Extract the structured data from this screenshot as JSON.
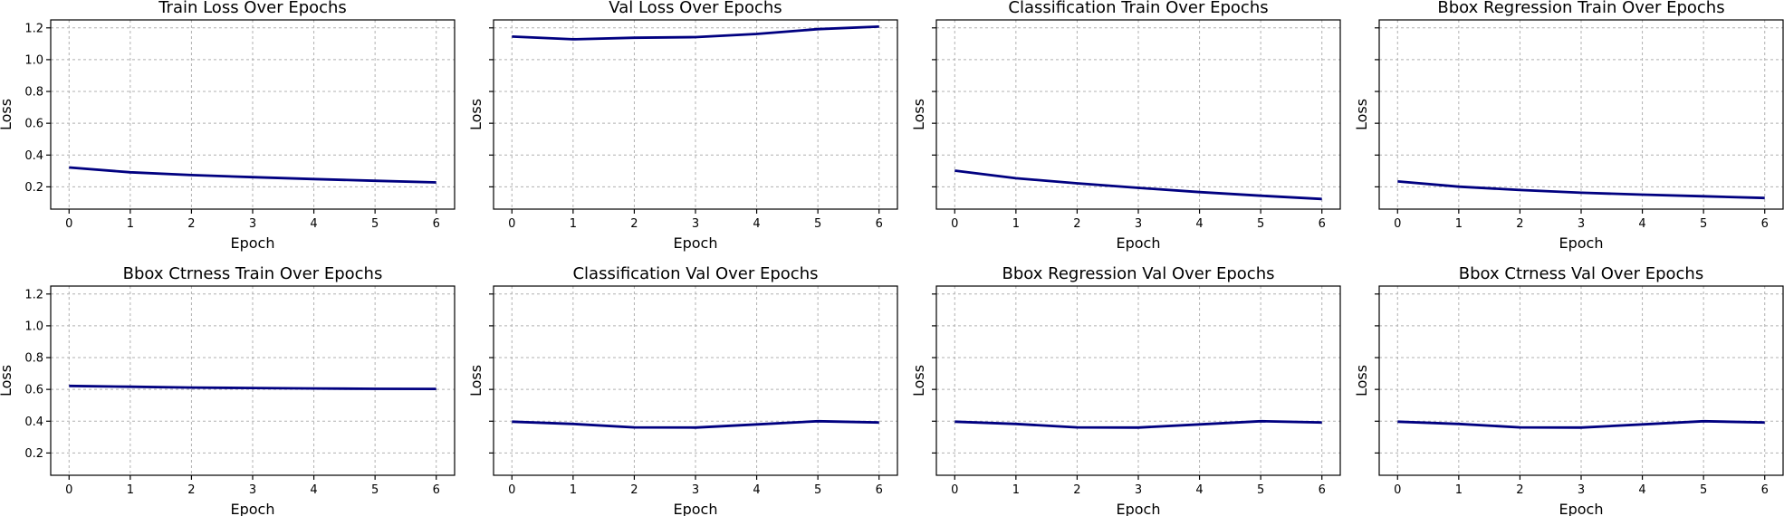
{
  "line_color": "#000080",
  "chart_data": [
    {
      "type": "line",
      "title": "Train Loss Over Epochs",
      "xlabel": "Epoch",
      "ylabel": "Loss",
      "x": [
        0,
        1,
        2,
        3,
        4,
        5,
        6
      ],
      "y": [
        0.322,
        0.292,
        0.274,
        0.261,
        0.249,
        0.238,
        0.228
      ],
      "xlim": [
        -0.3,
        6.3
      ],
      "ylim": [
        0.06,
        1.25
      ],
      "xticks": [
        "0",
        "1",
        "2",
        "3",
        "4",
        "5",
        "6"
      ],
      "yticks": [
        "0.2",
        "0.4",
        "0.6",
        "0.8",
        "1.0",
        "1.2"
      ],
      "show_yticklabels": true,
      "grid": true
    },
    {
      "type": "line",
      "title": "Val Loss Over Epochs",
      "xlabel": "Epoch",
      "ylabel": "Loss",
      "x": [
        0,
        1,
        2,
        3,
        4,
        5,
        6
      ],
      "y": [
        1.145,
        1.128,
        1.138,
        1.142,
        1.162,
        1.192,
        1.208
      ],
      "xlim": [
        -0.3,
        6.3
      ],
      "ylim": [
        0.06,
        1.25
      ],
      "xticks": [
        "0",
        "1",
        "2",
        "3",
        "4",
        "5",
        "6"
      ],
      "yticks": [
        "0.2",
        "0.4",
        "0.6",
        "0.8",
        "1.0",
        "1.2"
      ],
      "show_yticklabels": false,
      "grid": true
    },
    {
      "type": "line",
      "title": "Classification Train Over Epochs",
      "xlabel": "Epoch",
      "ylabel": "Loss",
      "x": [
        0,
        1,
        2,
        3,
        4,
        5,
        6
      ],
      "y": [
        0.302,
        0.254,
        0.222,
        0.194,
        0.167,
        0.144,
        0.124
      ],
      "xlim": [
        -0.3,
        6.3
      ],
      "ylim": [
        0.06,
        1.25
      ],
      "xticks": [
        "0",
        "1",
        "2",
        "3",
        "4",
        "5",
        "6"
      ],
      "yticks": [
        "0.2",
        "0.4",
        "0.6",
        "0.8",
        "1.0",
        "1.2"
      ],
      "show_yticklabels": false,
      "grid": true
    },
    {
      "type": "line",
      "title": "Bbox Regression Train Over Epochs",
      "xlabel": "Epoch",
      "ylabel": "Loss",
      "x": [
        0,
        1,
        2,
        3,
        4,
        5,
        6
      ],
      "y": [
        0.234,
        0.201,
        0.18,
        0.163,
        0.151,
        0.141,
        0.13
      ],
      "xlim": [
        -0.3,
        6.3
      ],
      "ylim": [
        0.06,
        1.25
      ],
      "xticks": [
        "0",
        "1",
        "2",
        "3",
        "4",
        "5",
        "6"
      ],
      "yticks": [
        "0.2",
        "0.4",
        "0.6",
        "0.8",
        "1.0",
        "1.2"
      ],
      "show_yticklabels": false,
      "grid": true
    },
    {
      "type": "line",
      "title": "Bbox Ctrness Train Over Epochs",
      "xlabel": "Epoch",
      "ylabel": "Loss",
      "x": [
        0,
        1,
        2,
        3,
        4,
        5,
        6
      ],
      "y": [
        0.622,
        0.617,
        0.612,
        0.609,
        0.606,
        0.604,
        0.603
      ],
      "xlim": [
        -0.3,
        6.3
      ],
      "ylim": [
        0.06,
        1.25
      ],
      "xticks": [
        "0",
        "1",
        "2",
        "3",
        "4",
        "5",
        "6"
      ],
      "yticks": [
        "0.2",
        "0.4",
        "0.6",
        "0.8",
        "1.0",
        "1.2"
      ],
      "show_yticklabels": true,
      "grid": true
    },
    {
      "type": "line",
      "title": "Classification Val Over Epochs",
      "xlabel": "Epoch",
      "ylabel": "Loss",
      "x": [
        0,
        1,
        2,
        3,
        4,
        5,
        6
      ],
      "y": [
        0.397,
        0.383,
        0.361,
        0.36,
        0.38,
        0.4,
        0.392
      ],
      "xlim": [
        -0.3,
        6.3
      ],
      "ylim": [
        0.06,
        1.25
      ],
      "xticks": [
        "0",
        "1",
        "2",
        "3",
        "4",
        "5",
        "6"
      ],
      "yticks": [
        "0.2",
        "0.4",
        "0.6",
        "0.8",
        "1.0",
        "1.2"
      ],
      "show_yticklabels": false,
      "grid": true
    },
    {
      "type": "line",
      "title": "Bbox Regression Val Over Epochs",
      "xlabel": "Epoch",
      "ylabel": "Loss",
      "x": [
        0,
        1,
        2,
        3,
        4,
        5,
        6
      ],
      "y": [
        0.397,
        0.383,
        0.361,
        0.36,
        0.38,
        0.4,
        0.392
      ],
      "xlim": [
        -0.3,
        6.3
      ],
      "ylim": [
        0.06,
        1.25
      ],
      "xticks": [
        "0",
        "1",
        "2",
        "3",
        "4",
        "5",
        "6"
      ],
      "yticks": [
        "0.2",
        "0.4",
        "0.6",
        "0.8",
        "1.0",
        "1.2"
      ],
      "show_yticklabels": false,
      "grid": true
    },
    {
      "type": "line",
      "title": "Bbox Ctrness Val Over Epochs",
      "xlabel": "Epoch",
      "ylabel": "Loss",
      "x": [
        0,
        1,
        2,
        3,
        4,
        5,
        6
      ],
      "y": [
        0.397,
        0.383,
        0.361,
        0.36,
        0.38,
        0.4,
        0.392
      ],
      "xlim": [
        -0.3,
        6.3
      ],
      "ylim": [
        0.06,
        1.25
      ],
      "xticks": [
        "0",
        "1",
        "2",
        "3",
        "4",
        "5",
        "6"
      ],
      "yticks": [
        "0.2",
        "0.4",
        "0.6",
        "0.8",
        "1.0",
        "1.2"
      ],
      "show_yticklabels": false,
      "grid": true
    }
  ]
}
